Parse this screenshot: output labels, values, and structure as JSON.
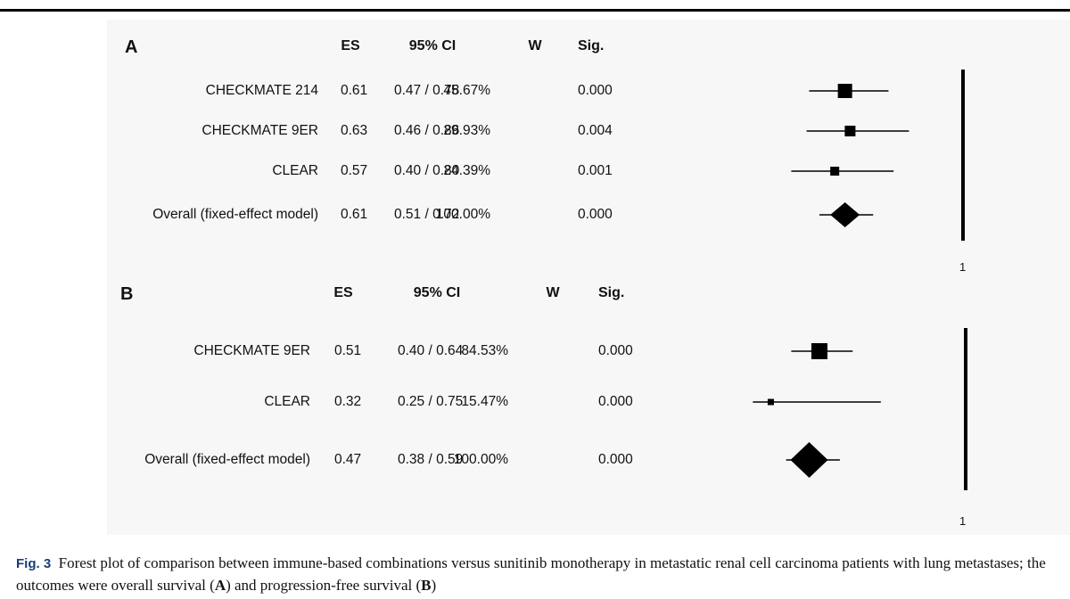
{
  "chart_data": [
    {
      "type": "forest",
      "panel": "A",
      "columns": [
        "ES",
        "95% CI",
        "W",
        "Sig."
      ],
      "x_axis_label": "1",
      "x_range": [
        0.2,
        1.35
      ],
      "rows": [
        {
          "label": "CHECKMATE 214",
          "es": 0.61,
          "es_text": "0.61",
          "ci_lower": 0.47,
          "ci_upper": 0.78,
          "ci_text": "0.47 / 0.78",
          "weight": "45.67%",
          "sig": "0.000",
          "marker": "square"
        },
        {
          "label": "CHECKMATE 9ER",
          "es": 0.63,
          "es_text": "0.63",
          "ci_lower": 0.46,
          "ci_upper": 0.86,
          "ci_text": "0.46 / 0.86",
          "weight": "29.93%",
          "sig": "0.004",
          "marker": "square"
        },
        {
          "label": "CLEAR",
          "es": 0.57,
          "es_text": "0.57",
          "ci_lower": 0.4,
          "ci_upper": 0.8,
          "ci_text": "0.40 / 0.80",
          "weight": "24.39%",
          "sig": "0.001",
          "marker": "square"
        },
        {
          "label": "Overall (fixed-effect model)",
          "es": 0.61,
          "es_text": "0.61",
          "ci_lower": 0.51,
          "ci_upper": 0.72,
          "ci_text": "0.51 / 0.72",
          "weight": "100.00%",
          "sig": "0.000",
          "marker": "diamond"
        }
      ]
    },
    {
      "type": "forest",
      "panel": "B",
      "columns": [
        "ES",
        "95% CI",
        "W",
        "Sig."
      ],
      "x_axis_label": "1",
      "x_range": [
        0.2,
        1.35
      ],
      "rows": [
        {
          "label": "CHECKMATE 9ER",
          "es": 0.51,
          "es_text": "0.51",
          "ci_lower": 0.4,
          "ci_upper": 0.64,
          "ci_text": "0.40 / 0.64",
          "weight": "84.53%",
          "sig": "0.000",
          "marker": "square"
        },
        {
          "label": "CLEAR",
          "es": 0.32,
          "es_text": "0.32",
          "ci_lower": 0.25,
          "ci_upper": 0.75,
          "ci_text": "0.25 / 0.75",
          "weight": "15.47%",
          "sig": "0.000",
          "marker": "square"
        },
        {
          "label": "Overall (fixed-effect model)",
          "es": 0.47,
          "es_text": "0.47",
          "ci_lower": 0.38,
          "ci_upper": 0.59,
          "ci_text": "0.38 / 0.59",
          "weight": "100.00%",
          "sig": "0.000",
          "marker": "diamond"
        }
      ]
    }
  ],
  "caption": {
    "label": "Fig. 3",
    "text_part1": "Forest plot of comparison between immune-based combinations versus sunitinib monotherapy in metastatic renal cell carcinoma patients with lung metastases; the outcomes were overall survival (",
    "a_letter": "A",
    "text_part2": ") and progression-free survival (",
    "b_letter": "B",
    "text_part3": ")"
  }
}
